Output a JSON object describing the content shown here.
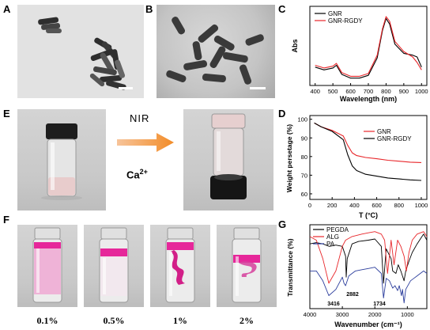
{
  "panels": {
    "a": "A",
    "b": "B",
    "c": "C",
    "d": "D",
    "e": "E",
    "f": "F",
    "g": "G"
  },
  "panel_e": {
    "stimulus": "NIR",
    "ion": "Ca",
    "ion_charge": "2+"
  },
  "panel_f": {
    "concentrations": [
      "0.1%",
      "0.5%",
      "1%",
      "2%"
    ]
  },
  "colors": {
    "black_series": "#000000",
    "red_series": "#e8262a",
    "blue_series": "#2b3d9c",
    "arrow": "#f28c28",
    "pink": "#e6279a"
  },
  "chart_data": [
    {
      "panel": "C",
      "type": "line",
      "xlabel": "Wavelength (nm)",
      "ylabel": "Abs",
      "xlim": [
        370,
        1030
      ],
      "xticks": [
        400,
        500,
        600,
        700,
        800,
        900,
        1000
      ],
      "legend": "top-left",
      "series": [
        {
          "name": "GNR",
          "color": "#000000",
          "x": [
            400,
            450,
            500,
            520,
            550,
            600,
            650,
            700,
            750,
            780,
            800,
            820,
            850,
            900,
            950,
            975,
            1000
          ],
          "y": [
            0.25,
            0.22,
            0.24,
            0.27,
            0.17,
            0.13,
            0.13,
            0.16,
            0.35,
            0.65,
            0.78,
            0.72,
            0.5,
            0.4,
            0.38,
            0.36,
            0.25
          ]
        },
        {
          "name": "GNR-RGDY",
          "color": "#e8262a",
          "x": [
            400,
            450,
            500,
            520,
            550,
            600,
            650,
            700,
            750,
            780,
            800,
            820,
            850,
            900,
            950,
            975,
            1000
          ],
          "y": [
            0.27,
            0.24,
            0.26,
            0.29,
            0.19,
            0.15,
            0.15,
            0.18,
            0.38,
            0.67,
            0.8,
            0.75,
            0.53,
            0.42,
            0.36,
            0.3,
            0.22
          ]
        }
      ]
    },
    {
      "panel": "D",
      "type": "line",
      "xlabel": "T (°C)",
      "ylabel": "Weight persetage (%)",
      "xlim": [
        0,
        1050
      ],
      "ylim": [
        57,
        102
      ],
      "xticks": [
        0,
        200,
        400,
        600,
        800,
        1000
      ],
      "yticks": [
        60,
        70,
        80,
        90,
        100
      ],
      "legend": "top-right",
      "series": [
        {
          "name": "GNR",
          "color": "#e8262a",
          "x": [
            40,
            100,
            200,
            300,
            340,
            380,
            420,
            500,
            600,
            700,
            800,
            900,
            1000
          ],
          "y": [
            98,
            96,
            94,
            91,
            86,
            82,
            80.5,
            79.5,
            78.8,
            78,
            77.5,
            77,
            76.8
          ]
        },
        {
          "name": "GNR-RGDY",
          "color": "#000000",
          "x": [
            40,
            100,
            200,
            300,
            340,
            380,
            420,
            500,
            600,
            700,
            800,
            900,
            1000
          ],
          "y": [
            98,
            96,
            93.5,
            89,
            81,
            75,
            72.5,
            70.5,
            69.5,
            68.5,
            68,
            67.5,
            67.2
          ]
        }
      ]
    },
    {
      "panel": "G",
      "type": "line",
      "xlabel": "Wavenumber (cm⁻¹)",
      "ylabel": "Transmittance (%)",
      "xlim": [
        4000,
        400
      ],
      "xticks": [
        4000,
        3000,
        2000,
        1000
      ],
      "legend": "top-left",
      "annotations": [
        "3416",
        "2882",
        "1734"
      ],
      "series": [
        {
          "name": "PEGDA",
          "color": "#000000",
          "x": [
            4000,
            3800,
            3600,
            3400,
            3200,
            3000,
            2900,
            2882,
            2850,
            2700,
            2500,
            2200,
            2000,
            1800,
            1734,
            1650,
            1500,
            1450,
            1350,
            1280,
            1200,
            1100,
            1050,
            950,
            850,
            700,
            500,
            400
          ],
          "y": [
            52,
            53,
            52,
            50,
            51,
            50,
            42,
            25,
            40,
            52,
            54,
            55,
            56,
            50,
            20,
            48,
            40,
            30,
            28,
            35,
            30,
            22,
            30,
            38,
            45,
            52,
            60,
            55
          ]
        },
        {
          "name": "ALG",
          "color": "#e8262a",
          "x": [
            4000,
            3800,
            3600,
            3416,
            3200,
            3000,
            2900,
            2700,
            2400,
            2200,
            2000,
            1800,
            1700,
            1610,
            1500,
            1410,
            1300,
            1200,
            1100,
            1030,
            950,
            850,
            700,
            500,
            400
          ],
          "y": [
            58,
            55,
            40,
            20,
            30,
            50,
            55,
            58,
            60,
            61,
            62,
            60,
            55,
            28,
            55,
            35,
            55,
            50,
            42,
            30,
            45,
            55,
            60,
            62,
            58
          ]
        },
        {
          "name": "PA",
          "color": "#2b3d9c",
          "x": [
            4000,
            3800,
            3600,
            3416,
            3200,
            3000,
            2950,
            2900,
            2800,
            2600,
            2400,
            2200,
            2000,
            1800,
            1734,
            1650,
            1550,
            1450,
            1380,
            1300,
            1250,
            1180,
            1150,
            1100,
            1050,
            900,
            800,
            700,
            500,
            400
          ],
          "y": [
            30,
            30,
            22,
            10,
            15,
            25,
            20,
            18,
            26,
            30,
            31,
            32,
            33,
            28,
            8,
            24,
            22,
            16,
            18,
            14,
            18,
            10,
            15,
            4,
            15,
            22,
            24,
            26,
            30,
            28
          ]
        }
      ]
    }
  ]
}
